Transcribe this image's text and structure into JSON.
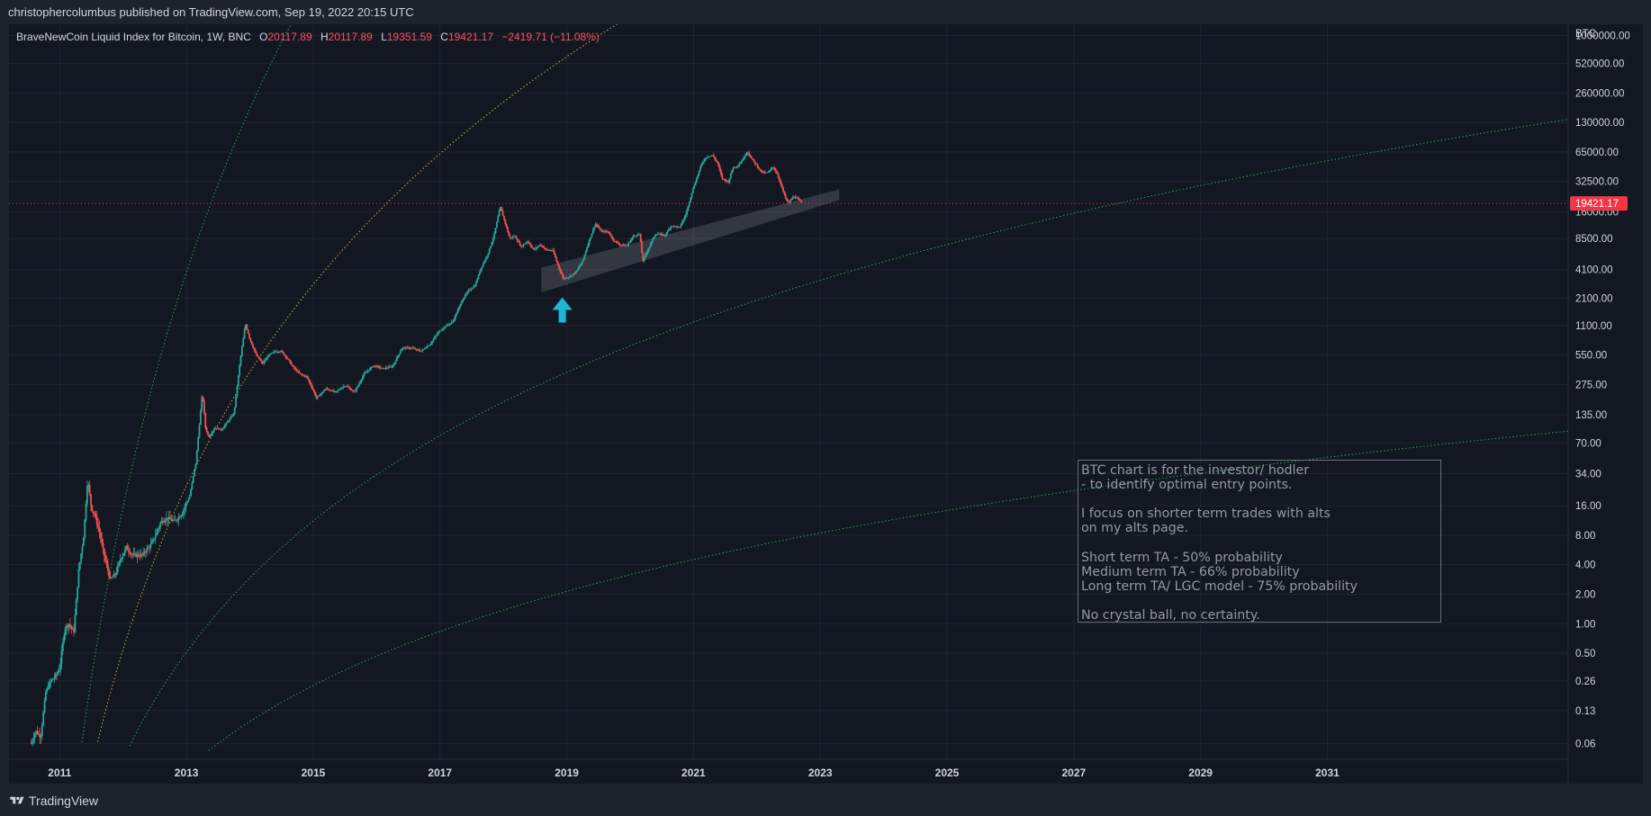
{
  "header": {
    "published": "christophercolumbus published on TradingView.com, Sep 19, 2022 20:15 UTC"
  },
  "legend": {
    "symbol": "BraveNewCoin Liquid Index for Bitcoin, 1W, BNC",
    "o_label": "O",
    "o_value": "20117.89",
    "h_label": "H",
    "h_value": "20117.89",
    "l_label": "L",
    "l_value": "19351.59",
    "c_label": "C",
    "c_value": "19421.17",
    "change": "−2419.71 (−11.08%)"
  },
  "annotation": {
    "text": "BTC chart is for the investor/ hodler\n- to identify optimal entry points.\n\nI focus on shorter term trades with alts\non my alts page.\n\nShort term TA - 50% probability\nMedium term TA - 66% probability\nLong term TA/ LGC model - 75% probability\n\nNo crystal ball, no certainty."
  },
  "footer": {
    "brand": "TradingView"
  },
  "colors": {
    "background": "#131722",
    "frame": "#1e222d",
    "grid": "#1f2430",
    "up": "#26a69a",
    "down": "#ef5350",
    "price_line": "#f23645",
    "green_curve": "#26a845",
    "orange_curve": "#d9a93a",
    "arrow": "#1eb6d6"
  },
  "chart_data": {
    "type": "candlestick",
    "title": "BraveNewCoin Liquid Index for Bitcoin, 1W, BNC",
    "currency_label": "BTC",
    "y_scale": "log",
    "ylim": [
      0.05,
      1150000
    ],
    "xlim": [
      2010.2,
      2034.8
    ],
    "y_ticks": [
      {
        "value": 1000000,
        "label": "1000000.00"
      },
      {
        "value": 520000,
        "label": "520000.00"
      },
      {
        "value": 260000,
        "label": "260000.00"
      },
      {
        "value": 130000,
        "label": "130000.00"
      },
      {
        "value": 65000,
        "label": "65000.00"
      },
      {
        "value": 32500,
        "label": "32500.00"
      },
      {
        "value": 16000,
        "label": "16000.00"
      },
      {
        "value": 8500,
        "label": "8500.00"
      },
      {
        "value": 4100,
        "label": "4100.00"
      },
      {
        "value": 2100,
        "label": "2100.00"
      },
      {
        "value": 1100,
        "label": "1100.00"
      },
      {
        "value": 550,
        "label": "550.00"
      },
      {
        "value": 275,
        "label": "275.00"
      },
      {
        "value": 135,
        "label": "135.00"
      },
      {
        "value": 70,
        "label": "70.00"
      },
      {
        "value": 34,
        "label": "34.00"
      },
      {
        "value": 16,
        "label": "16.00"
      },
      {
        "value": 8,
        "label": "8.00"
      },
      {
        "value": 4,
        "label": "4.00"
      },
      {
        "value": 2,
        "label": "2.00"
      },
      {
        "value": 1,
        "label": "1.00"
      },
      {
        "value": 0.5,
        "label": "0.50"
      },
      {
        "value": 0.26,
        "label": "0.26"
      },
      {
        "value": 0.13,
        "label": "0.13"
      },
      {
        "value": 0.06,
        "label": "0.06"
      }
    ],
    "x_ticks": [
      {
        "value": 2011,
        "label": "2011"
      },
      {
        "value": 2013,
        "label": "2013"
      },
      {
        "value": 2015,
        "label": "2015"
      },
      {
        "value": 2017,
        "label": "2017"
      },
      {
        "value": 2019,
        "label": "2019"
      },
      {
        "value": 2021,
        "label": "2021"
      },
      {
        "value": 2023,
        "label": "2023"
      },
      {
        "value": 2025,
        "label": "2025"
      },
      {
        "value": 2027,
        "label": "2027"
      },
      {
        "value": 2029,
        "label": "2029"
      },
      {
        "value": 2031,
        "label": "2031"
      }
    ],
    "last_price": {
      "value": 19421.17,
      "label": "19421.17"
    },
    "price_path": [
      [
        2010.55,
        0.06
      ],
      [
        2010.62,
        0.08
      ],
      [
        2010.7,
        0.07
      ],
      [
        2010.78,
        0.2
      ],
      [
        2010.86,
        0.26
      ],
      [
        2010.95,
        0.3
      ],
      [
        2011.0,
        0.35
      ],
      [
        2011.08,
        0.9
      ],
      [
        2011.15,
        1.0
      ],
      [
        2011.22,
        0.8
      ],
      [
        2011.3,
        3.5
      ],
      [
        2011.38,
        8
      ],
      [
        2011.44,
        30
      ],
      [
        2011.5,
        15
      ],
      [
        2011.55,
        13
      ],
      [
        2011.62,
        9
      ],
      [
        2011.7,
        5
      ],
      [
        2011.8,
        2.8
      ],
      [
        2011.88,
        3.2
      ],
      [
        2011.96,
        4.6
      ],
      [
        2012.05,
        6
      ],
      [
        2012.15,
        5
      ],
      [
        2012.3,
        5
      ],
      [
        2012.45,
        6.5
      ],
      [
        2012.6,
        11
      ],
      [
        2012.7,
        12
      ],
      [
        2012.8,
        11
      ],
      [
        2012.92,
        13
      ],
      [
        2013.05,
        20
      ],
      [
        2013.15,
        45
      ],
      [
        2013.25,
        230
      ],
      [
        2013.3,
        100
      ],
      [
        2013.35,
        80
      ],
      [
        2013.45,
        100
      ],
      [
        2013.55,
        95
      ],
      [
        2013.65,
        115
      ],
      [
        2013.75,
        140
      ],
      [
        2013.85,
        500
      ],
      [
        2013.93,
        1150
      ],
      [
        2014.0,
        800
      ],
      [
        2014.1,
        550
      ],
      [
        2014.2,
        450
      ],
      [
        2014.3,
        550
      ],
      [
        2014.4,
        600
      ],
      [
        2014.5,
        600
      ],
      [
        2014.6,
        500
      ],
      [
        2014.7,
        400
      ],
      [
        2014.8,
        350
      ],
      [
        2014.9,
        330
      ],
      [
        2015.0,
        240
      ],
      [
        2015.05,
        200
      ],
      [
        2015.2,
        250
      ],
      [
        2015.35,
        230
      ],
      [
        2015.5,
        270
      ],
      [
        2015.65,
        230
      ],
      [
        2015.8,
        350
      ],
      [
        2015.95,
        430
      ],
      [
        2016.1,
        400
      ],
      [
        2016.25,
        420
      ],
      [
        2016.4,
        650
      ],
      [
        2016.55,
        650
      ],
      [
        2016.7,
        600
      ],
      [
        2016.85,
        720
      ],
      [
        2016.98,
        950
      ],
      [
        2017.1,
        1100
      ],
      [
        2017.2,
        1200
      ],
      [
        2017.35,
        2000
      ],
      [
        2017.45,
        2500
      ],
      [
        2017.55,
        2800
      ],
      [
        2017.65,
        4300
      ],
      [
        2017.75,
        5800
      ],
      [
        2017.85,
        9000
      ],
      [
        2017.95,
        18000
      ],
      [
        2018.0,
        14000
      ],
      [
        2018.05,
        11000
      ],
      [
        2018.1,
        8500
      ],
      [
        2018.18,
        9000
      ],
      [
        2018.28,
        7000
      ],
      [
        2018.38,
        8000
      ],
      [
        2018.48,
        6500
      ],
      [
        2018.58,
        7400
      ],
      [
        2018.68,
        6500
      ],
      [
        2018.78,
        6400
      ],
      [
        2018.88,
        4200
      ],
      [
        2018.95,
        3300
      ],
      [
        2019.05,
        3500
      ],
      [
        2019.15,
        3900
      ],
      [
        2019.25,
        5000
      ],
      [
        2019.35,
        8000
      ],
      [
        2019.45,
        12000
      ],
      [
        2019.55,
        10000
      ],
      [
        2019.65,
        10000
      ],
      [
        2019.75,
        8000
      ],
      [
        2019.85,
        7300
      ],
      [
        2019.95,
        7200
      ],
      [
        2020.05,
        9000
      ],
      [
        2020.15,
        9500
      ],
      [
        2020.2,
        5000
      ],
      [
        2020.3,
        7000
      ],
      [
        2020.4,
        9500
      ],
      [
        2020.55,
        9200
      ],
      [
        2020.65,
        11500
      ],
      [
        2020.78,
        11000
      ],
      [
        2020.88,
        15000
      ],
      [
        2020.98,
        26000
      ],
      [
        2021.05,
        35000
      ],
      [
        2021.12,
        48000
      ],
      [
        2021.2,
        58000
      ],
      [
        2021.3,
        60000
      ],
      [
        2021.38,
        50000
      ],
      [
        2021.45,
        35000
      ],
      [
        2021.55,
        32000
      ],
      [
        2021.62,
        45000
      ],
      [
        2021.7,
        47000
      ],
      [
        2021.78,
        55000
      ],
      [
        2021.85,
        66000
      ],
      [
        2021.92,
        55000
      ],
      [
        2022.0,
        47000
      ],
      [
        2022.08,
        40000
      ],
      [
        2022.18,
        40000
      ],
      [
        2022.25,
        46000
      ],
      [
        2022.32,
        39000
      ],
      [
        2022.38,
        30000
      ],
      [
        2022.45,
        22000
      ],
      [
        2022.5,
        19500
      ],
      [
        2022.58,
        23000
      ],
      [
        2022.66,
        21000
      ],
      [
        2022.72,
        19421
      ]
    ],
    "curves": {
      "upper_green": {
        "t0": 2010.15,
        "c": 1.32,
        "k": -2.22,
        "x_start": 2010.85,
        "x_end": 2034.8
      },
      "middle_orange": {
        "t0": 2010.15,
        "c": 0.92,
        "k": -2.64,
        "x_start": 2010.55,
        "x_end": 2034.8
      },
      "lower_green_a": {
        "t0": 2010.15,
        "c": 0.6,
        "k": -2.93,
        "x_start": 2010.6,
        "x_end": 2034.8
      },
      "lower_green_b": {
        "t0": 2010.15,
        "c": 0.38,
        "k": -3.15,
        "x_start": 2010.7,
        "x_end": 2034.8
      }
    },
    "band": {
      "x_start": 2018.6,
      "x_end": 2023.3,
      "y0_start": 2400,
      "y1_start": 4300,
      "y0_end": 21000,
      "y1_end": 27000
    },
    "markers": [
      {
        "type": "arrow-up",
        "x": 2018.93,
        "y": 1400
      }
    ]
  }
}
